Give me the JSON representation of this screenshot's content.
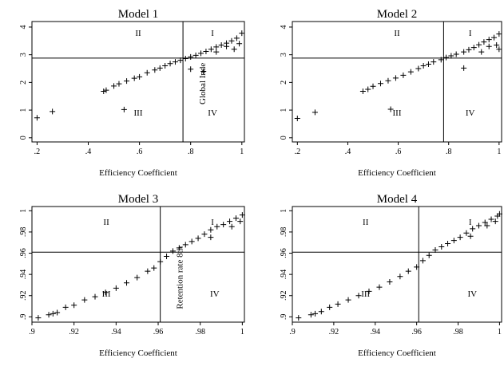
{
  "chart_data": [
    {
      "type": "scatter",
      "title": "Model 1",
      "xlabel": "Efficiency Coefficient",
      "ylabel": "",
      "xlim": [
        0.18,
        1.01
      ],
      "ylim": [
        -0.15,
        4.2
      ],
      "xticks": [
        ".2",
        ".4",
        ".6",
        ".8",
        "1"
      ],
      "xtick_values": [
        0.2,
        0.4,
        0.6,
        0.8,
        1.0
      ],
      "yticks": [
        "0",
        "1",
        "2",
        "3",
        "4"
      ],
      "ytick_values": [
        0,
        1,
        2,
        3,
        4
      ],
      "vline": 0.77,
      "hline": 2.88,
      "quadrant_labels": {
        "I": "I",
        "II": "II",
        "III": "III",
        "IV": "IV"
      },
      "line_label": "Global Inde",
      "grid": false,
      "marker": "+",
      "points": [
        [
          0.2,
          0.72
        ],
        [
          0.26,
          0.95
        ],
        [
          0.46,
          1.68
        ],
        [
          0.47,
          1.72
        ],
        [
          0.5,
          1.87
        ],
        [
          0.52,
          1.95
        ],
        [
          0.54,
          1.02
        ],
        [
          0.55,
          2.05
        ],
        [
          0.58,
          2.15
        ],
        [
          0.6,
          2.2
        ],
        [
          0.63,
          2.35
        ],
        [
          0.66,
          2.45
        ],
        [
          0.68,
          2.52
        ],
        [
          0.7,
          2.6
        ],
        [
          0.72,
          2.68
        ],
        [
          0.74,
          2.74
        ],
        [
          0.76,
          2.8
        ],
        [
          0.78,
          2.86
        ],
        [
          0.8,
          2.92
        ],
        [
          0.8,
          2.48
        ],
        [
          0.82,
          2.98
        ],
        [
          0.84,
          3.05
        ],
        [
          0.86,
          3.12
        ],
        [
          0.88,
          3.2
        ],
        [
          0.9,
          3.28
        ],
        [
          0.92,
          3.35
        ],
        [
          0.94,
          3.42
        ],
        [
          0.96,
          3.5
        ],
        [
          0.98,
          3.6
        ],
        [
          1.0,
          3.78
        ],
        [
          0.99,
          3.4
        ],
        [
          0.9,
          3.1
        ],
        [
          0.85,
          2.4
        ],
        [
          0.94,
          3.3
        ],
        [
          0.97,
          3.2
        ]
      ]
    },
    {
      "type": "scatter",
      "title": "Model 2",
      "xlabel": "Efficiency Coefficient",
      "ylabel": "",
      "xlim": [
        0.18,
        1.01
      ],
      "ylim": [
        -0.15,
        4.2
      ],
      "xticks": [
        ".2",
        ".4",
        ".6",
        ".8",
        "1"
      ],
      "xtick_values": [
        0.2,
        0.4,
        0.6,
        0.8,
        1.0
      ],
      "yticks": [
        "0",
        "1",
        "2",
        "3",
        "4"
      ],
      "ytick_values": [
        0,
        1,
        2,
        3,
        4
      ],
      "vline": 0.78,
      "hline": 2.88,
      "quadrant_labels": {
        "I": "I",
        "II": "II",
        "III": "III",
        "IV": "IV"
      },
      "line_label": "",
      "grid": false,
      "marker": "+",
      "points": [
        [
          0.2,
          0.7
        ],
        [
          0.27,
          0.92
        ],
        [
          0.46,
          1.68
        ],
        [
          0.48,
          1.75
        ],
        [
          0.5,
          1.86
        ],
        [
          0.53,
          1.96
        ],
        [
          0.57,
          1.03
        ],
        [
          0.56,
          2.06
        ],
        [
          0.59,
          2.16
        ],
        [
          0.62,
          2.26
        ],
        [
          0.65,
          2.38
        ],
        [
          0.68,
          2.5
        ],
        [
          0.7,
          2.6
        ],
        [
          0.72,
          2.66
        ],
        [
          0.74,
          2.74
        ],
        [
          0.77,
          2.82
        ],
        [
          0.79,
          2.9
        ],
        [
          0.81,
          2.96
        ],
        [
          0.83,
          3.02
        ],
        [
          0.86,
          2.52
        ],
        [
          0.86,
          3.1
        ],
        [
          0.88,
          3.18
        ],
        [
          0.9,
          3.26
        ],
        [
          0.92,
          3.36
        ],
        [
          0.94,
          3.46
        ],
        [
          0.96,
          3.55
        ],
        [
          0.98,
          3.62
        ],
        [
          1.0,
          3.75
        ],
        [
          0.99,
          3.35
        ],
        [
          0.96,
          3.3
        ],
        [
          0.93,
          3.1
        ],
        [
          1.0,
          3.2
        ]
      ]
    },
    {
      "type": "scatter",
      "title": "Model 3",
      "xlabel": "Efficiency Coefficient",
      "ylabel": "",
      "xlim": [
        0.9,
        1.001
      ],
      "ylim": [
        0.895,
        1.004
      ],
      "xticks": [
        ".9",
        ".92",
        ".94",
        ".96",
        ".98",
        "1"
      ],
      "xtick_values": [
        0.9,
        0.92,
        0.94,
        0.96,
        0.98,
        1.0
      ],
      "yticks": [
        ".9",
        ".92",
        ".94",
        ".96",
        ".98",
        "1"
      ],
      "ytick_values": [
        0.9,
        0.92,
        0.94,
        0.96,
        0.98,
        1.0
      ],
      "vline": 0.961,
      "hline": 0.961,
      "quadrant_labels": {
        "I": "I",
        "II": "II",
        "III": "III",
        "IV": "IV"
      },
      "line_label": "Retention rate 8th",
      "grid": false,
      "marker": "+",
      "points": [
        [
          0.903,
          0.899
        ],
        [
          0.908,
          0.902
        ],
        [
          0.91,
          0.903
        ],
        [
          0.912,
          0.904
        ],
        [
          0.916,
          0.909
        ],
        [
          0.92,
          0.911
        ],
        [
          0.925,
          0.916
        ],
        [
          0.93,
          0.919
        ],
        [
          0.935,
          0.923
        ],
        [
          0.94,
          0.927
        ],
        [
          0.945,
          0.932
        ],
        [
          0.95,
          0.937
        ],
        [
          0.955,
          0.943
        ],
        [
          0.958,
          0.946
        ],
        [
          0.961,
          0.952
        ],
        [
          0.964,
          0.957
        ],
        [
          0.967,
          0.962
        ],
        [
          0.97,
          0.965
        ],
        [
          0.973,
          0.968
        ],
        [
          0.976,
          0.971
        ],
        [
          0.979,
          0.974
        ],
        [
          0.982,
          0.978
        ],
        [
          0.985,
          0.982
        ],
        [
          0.988,
          0.985
        ],
        [
          0.991,
          0.987
        ],
        [
          0.994,
          0.99
        ],
        [
          0.997,
          0.993
        ],
        [
          1.0,
          0.996
        ],
        [
          0.999,
          0.99
        ],
        [
          0.995,
          0.985
        ],
        [
          0.985,
          0.975
        ]
      ]
    },
    {
      "type": "scatter",
      "title": "Model 4",
      "xlabel": "Efficiency Coefficient",
      "ylabel": "",
      "xlim": [
        0.9,
        1.001
      ],
      "ylim": [
        0.895,
        1.004
      ],
      "xticks": [
        ".9",
        ".92",
        ".94",
        ".96",
        ".98",
        "1"
      ],
      "xtick_values": [
        0.9,
        0.92,
        0.94,
        0.96,
        0.98,
        1.0
      ],
      "yticks": [
        ".9",
        ".92",
        ".94",
        ".96",
        ".98",
        "1"
      ],
      "ytick_values": [
        0.9,
        0.92,
        0.94,
        0.96,
        0.98,
        1.0
      ],
      "vline": 0.961,
      "hline": 0.961,
      "quadrant_labels": {
        "I": "I",
        "II": "II",
        "III": "III",
        "IV": "IV"
      },
      "line_label": "",
      "grid": false,
      "marker": "+",
      "points": [
        [
          0.903,
          0.899
        ],
        [
          0.909,
          0.902
        ],
        [
          0.911,
          0.903
        ],
        [
          0.914,
          0.905
        ],
        [
          0.918,
          0.909
        ],
        [
          0.922,
          0.912
        ],
        [
          0.927,
          0.916
        ],
        [
          0.932,
          0.92
        ],
        [
          0.937,
          0.924
        ],
        [
          0.942,
          0.928
        ],
        [
          0.947,
          0.933
        ],
        [
          0.952,
          0.938
        ],
        [
          0.956,
          0.943
        ],
        [
          0.96,
          0.947
        ],
        [
          0.963,
          0.953
        ],
        [
          0.966,
          0.958
        ],
        [
          0.969,
          0.963
        ],
        [
          0.972,
          0.966
        ],
        [
          0.975,
          0.969
        ],
        [
          0.978,
          0.972
        ],
        [
          0.981,
          0.975
        ],
        [
          0.984,
          0.979
        ],
        [
          0.987,
          0.983
        ],
        [
          0.99,
          0.986
        ],
        [
          0.993,
          0.989
        ],
        [
          0.996,
          0.992
        ],
        [
          0.999,
          0.995
        ],
        [
          1.0,
          0.997
        ],
        [
          0.998,
          0.99
        ],
        [
          0.994,
          0.986
        ],
        [
          0.986,
          0.976
        ]
      ]
    }
  ]
}
